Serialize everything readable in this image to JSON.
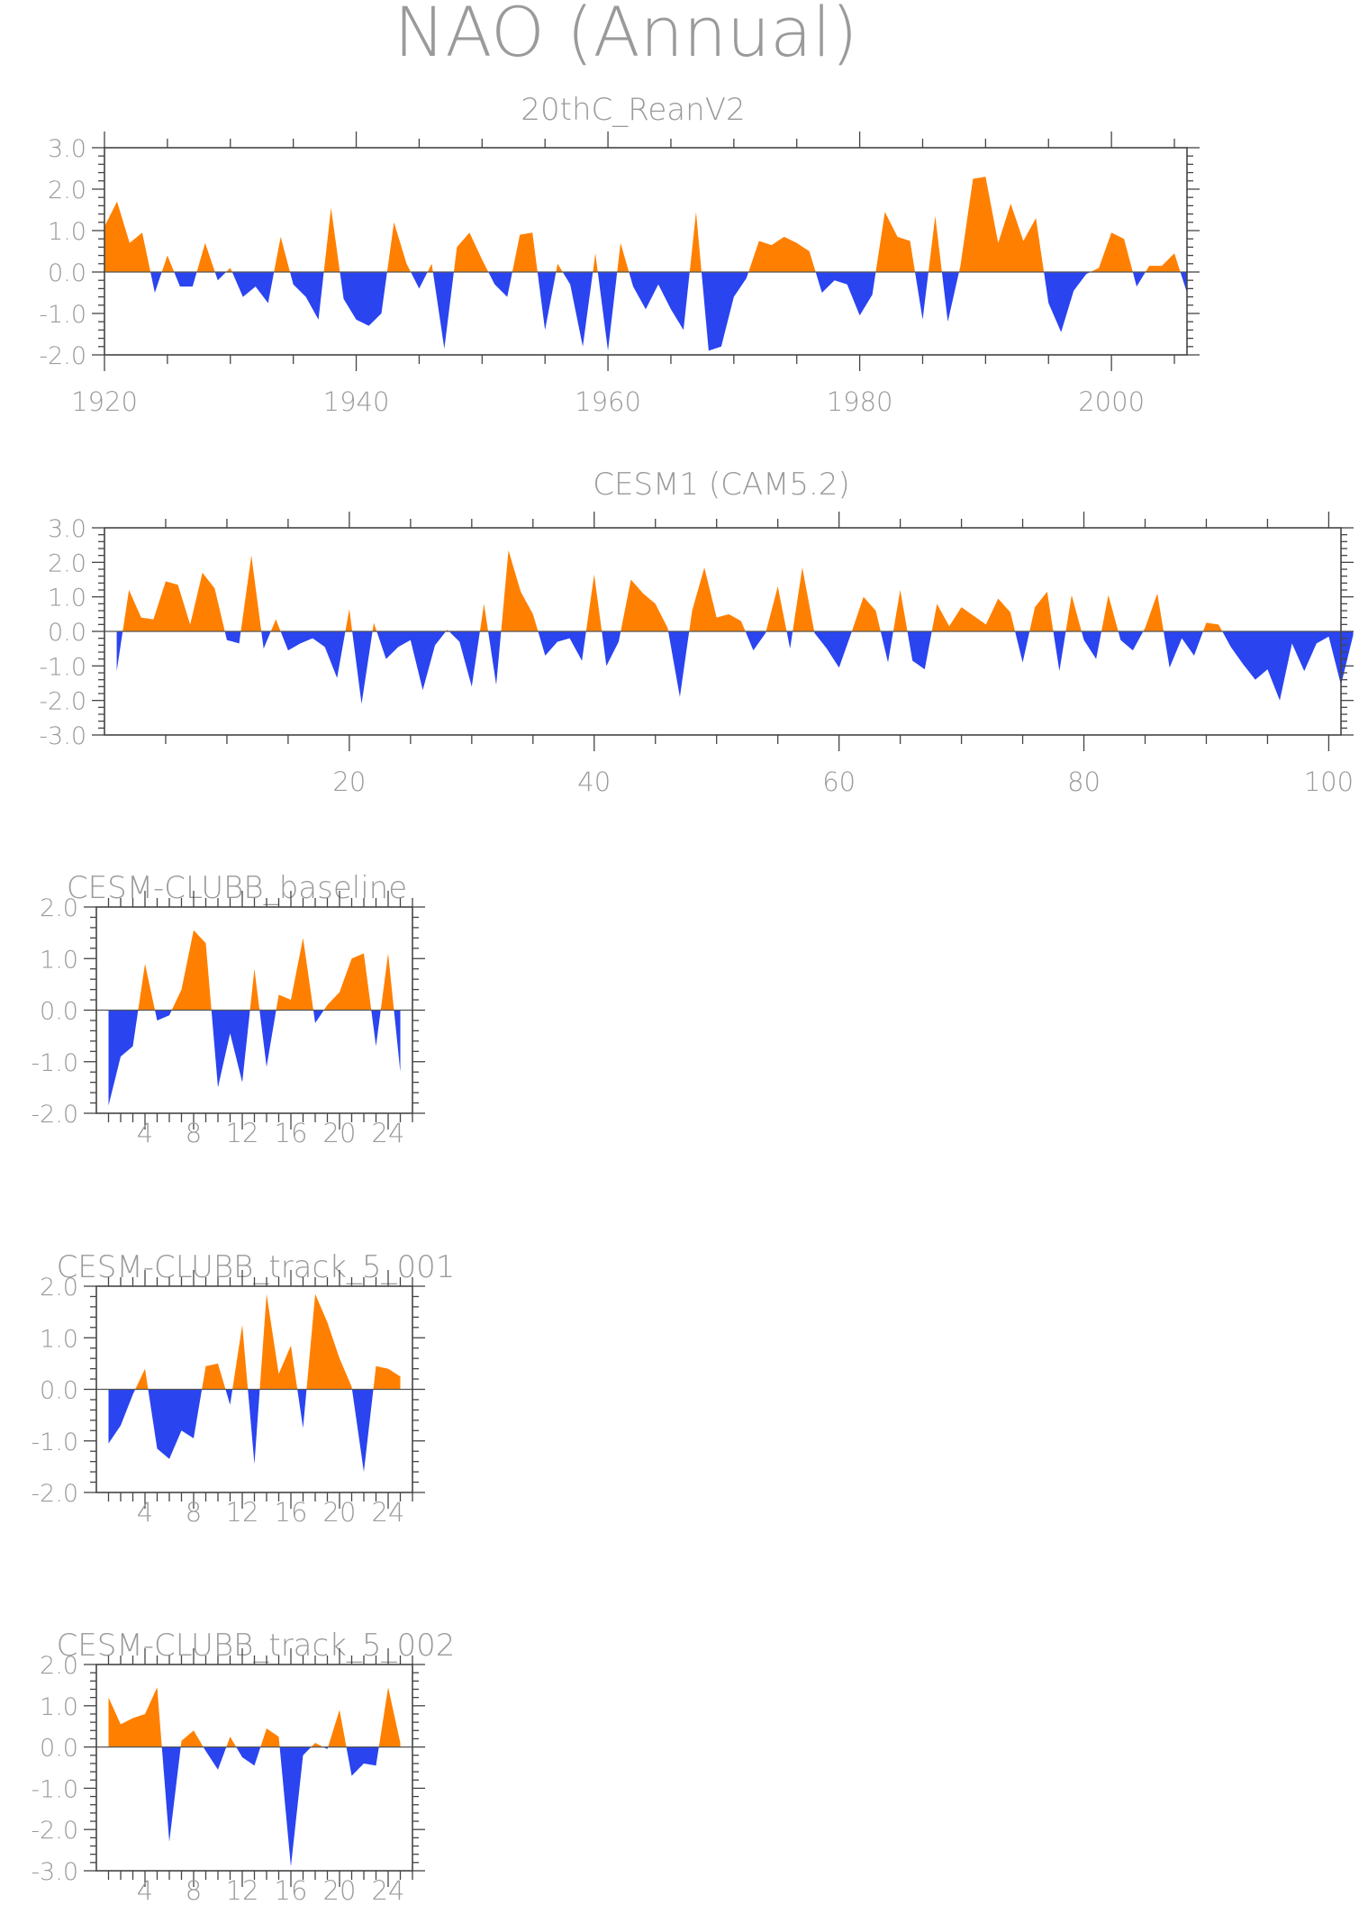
{
  "title": "NAO (Annual)",
  "colors": {
    "positive": "#ff8000",
    "negative": "#2a44f0",
    "axis": "#444444",
    "text": "#9a9a9a"
  },
  "chart_data": [
    {
      "type": "area",
      "title": "20thC_ReanV2",
      "xlim": [
        1920,
        2006
      ],
      "ylim": [
        -2.0,
        3.0
      ],
      "xticks": [
        1920,
        1940,
        1960,
        1980,
        2000
      ],
      "yticks": [
        "-2.0",
        "-1.0",
        "0.0",
        "1.0",
        "2.0",
        "3.0"
      ],
      "x_start": 1920,
      "values": [
        1.1,
        1.7,
        0.7,
        0.95,
        -0.5,
        0.4,
        -0.35,
        -0.35,
        0.7,
        -0.2,
        0.1,
        -0.6,
        -0.35,
        -0.75,
        0.85,
        -0.3,
        -0.6,
        -1.15,
        1.55,
        -0.65,
        -1.15,
        -1.3,
        -1.0,
        1.2,
        0.2,
        -0.4,
        0.2,
        -1.85,
        0.6,
        0.95,
        0.3,
        -0.3,
        -0.6,
        0.9,
        0.95,
        -1.4,
        0.2,
        -0.3,
        -1.8,
        0.45,
        -1.9,
        0.7,
        -0.35,
        -0.9,
        -0.3,
        -0.9,
        -1.4,
        1.45,
        -1.9,
        -1.8,
        -0.6,
        -0.15,
        0.75,
        0.65,
        0.85,
        0.7,
        0.5,
        -0.5,
        -0.2,
        -0.3,
        -1.05,
        -0.55,
        1.45,
        0.85,
        0.75,
        -1.15,
        1.35,
        -1.2,
        0.15,
        2.25,
        2.3,
        0.7,
        1.65,
        0.75,
        1.3,
        -0.75,
        -1.45,
        -0.45,
        -0.05,
        0.1,
        0.95,
        0.8,
        -0.35,
        0.15,
        0.15,
        0.45,
        -0.5
      ]
    },
    {
      "type": "area",
      "title": "CESM1 (CAM5.2)",
      "xlim": [
        0,
        101
      ],
      "ylim": [
        -3.0,
        3.0
      ],
      "xticks": [
        20,
        40,
        60,
        80,
        100
      ],
      "yticks": [
        "-3.0",
        "-2.0",
        "-1.0",
        "0.0",
        "1.0",
        "2.0",
        "3.0"
      ],
      "x_start": 1,
      "values": [
        -1.15,
        1.2,
        0.4,
        0.35,
        1.45,
        1.35,
        0.2,
        1.7,
        1.25,
        -0.25,
        -0.35,
        2.2,
        -0.5,
        0.35,
        -0.55,
        -0.35,
        -0.2,
        -0.45,
        -1.35,
        0.65,
        -2.1,
        0.25,
        -0.8,
        -0.45,
        -0.25,
        -1.7,
        -0.4,
        0.05,
        -0.3,
        -1.6,
        0.8,
        -1.55,
        2.35,
        1.15,
        0.5,
        -0.7,
        -0.3,
        -0.2,
        -0.85,
        1.65,
        -1.0,
        -0.3,
        1.5,
        1.1,
        0.8,
        0.1,
        -1.9,
        0.6,
        1.85,
        0.4,
        0.5,
        0.3,
        -0.55,
        -0.05,
        1.3,
        -0.5,
        1.85,
        -0.05,
        -0.5,
        -1.05,
        -0.05,
        1.0,
        0.6,
        -0.9,
        1.2,
        -0.85,
        -1.1,
        0.8,
        0.15,
        0.7,
        0.45,
        0.2,
        0.95,
        0.55,
        -0.9,
        0.7,
        1.15,
        -1.15,
        1.05,
        -0.25,
        -0.8,
        1.05,
        -0.25,
        -0.55,
        0.1,
        1.1,
        -1.05,
        -0.2,
        -0.7,
        0.25,
        0.2,
        -0.45,
        -0.95,
        -1.4,
        -1.1,
        -2.0,
        -0.35,
        -1.15,
        -0.35,
        -0.15,
        -1.55,
        -0.1
      ]
    },
    {
      "type": "area",
      "title": "CESM-CLUBB_baseline",
      "xlim": [
        0,
        26
      ],
      "ylim": [
        -2.0,
        2.0
      ],
      "xticks": [
        4,
        8,
        12,
        16,
        20,
        24
      ],
      "yticks": [
        "-2.0",
        "-1.0",
        "0.0",
        "1.0",
        "2.0"
      ],
      "x_start": 1,
      "values": [
        -1.85,
        -0.9,
        -0.7,
        0.9,
        -0.2,
        -0.1,
        0.4,
        1.55,
        1.3,
        -1.5,
        -0.45,
        -1.4,
        0.8,
        -1.1,
        0.3,
        0.2,
        1.4,
        -0.25,
        0.1,
        0.35,
        1.0,
        1.1,
        -0.7,
        1.1,
        -1.2
      ]
    },
    {
      "type": "area",
      "title": "CESM-CLUBB_track_5_001",
      "xlim": [
        0,
        26
      ],
      "ylim": [
        -2.0,
        2.0
      ],
      "xticks": [
        4,
        8,
        12,
        16,
        20,
        24
      ],
      "yticks": [
        "-2.0",
        "-1.0",
        "0.0",
        "1.0",
        "2.0"
      ],
      "x_start": 1,
      "values": [
        -1.05,
        -0.7,
        -0.1,
        0.4,
        -1.15,
        -1.35,
        -0.8,
        -0.95,
        0.45,
        0.5,
        -0.3,
        1.25,
        -1.45,
        1.85,
        0.3,
        0.85,
        -0.75,
        1.85,
        1.3,
        0.6,
        0.05,
        -1.6,
        0.45,
        0.4,
        0.25
      ]
    },
    {
      "type": "area",
      "title": "CESM-CLUBB_track_5_002",
      "xlim": [
        0,
        26
      ],
      "ylim": [
        -3.0,
        2.0
      ],
      "xticks": [
        4,
        8,
        12,
        16,
        20,
        24
      ],
      "yticks": [
        "-3.0",
        "-2.0",
        "-1.0",
        "0.0",
        "1.0",
        "2.0"
      ],
      "x_start": 1,
      "values": [
        1.2,
        0.55,
        0.7,
        0.8,
        1.45,
        -2.3,
        0.15,
        0.4,
        -0.1,
        -0.55,
        0.25,
        -0.25,
        -0.45,
        0.45,
        0.25,
        -2.9,
        -0.2,
        0.1,
        -0.05,
        0.9,
        -0.7,
        -0.4,
        -0.45,
        1.45,
        0.1
      ]
    }
  ]
}
